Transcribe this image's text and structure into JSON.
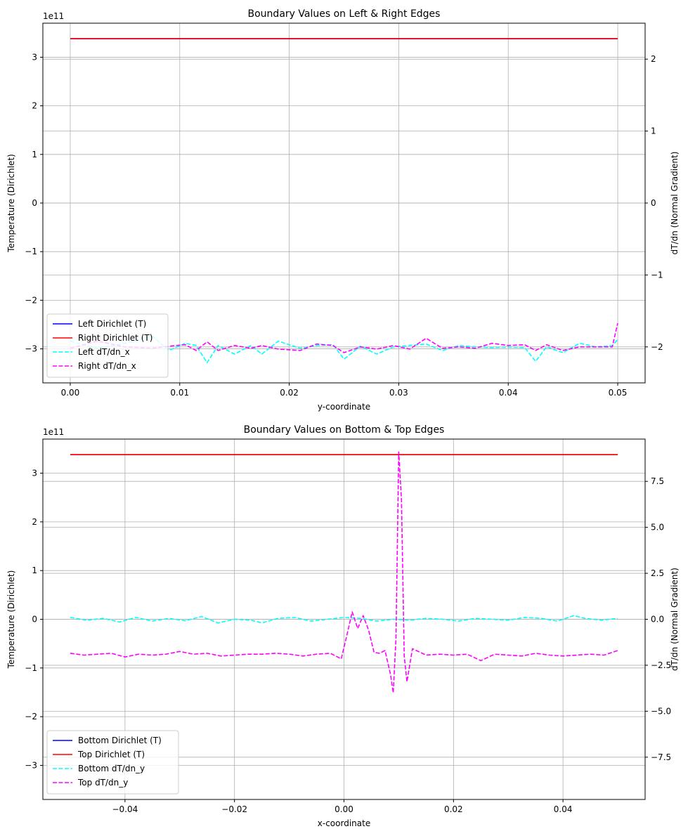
{
  "chart_data": [
    {
      "type": "line",
      "title": "Boundary Values on Left & Right Edges",
      "xlabel": "y-coordinate",
      "ylabel_left": "Temperature (Dirichlet)",
      "ylabel_right": "dT/dn (Normal Gradient)",
      "offset_label": "1e11",
      "xlim": [
        -0.0025,
        0.0525
      ],
      "ylim_left": [
        -3.7,
        3.7
      ],
      "ylim_right": [
        -2.5,
        2.5
      ],
      "xticks": [
        0.0,
        0.01,
        0.02,
        0.03,
        0.04,
        0.05
      ],
      "xtick_labels": [
        "0.00",
        "0.01",
        "0.02",
        "0.03",
        "0.04",
        "0.05"
      ],
      "yticks_left": [
        -3,
        -2,
        -1,
        0,
        1,
        2,
        3
      ],
      "ytick_labels_left": [
        "−3",
        "−2",
        "−1",
        "0",
        "1",
        "2",
        "3"
      ],
      "yticks_right": [
        -2,
        -1,
        0,
        1,
        2
      ],
      "ytick_labels_right": [
        "−2",
        "−1",
        "0",
        "1",
        "2"
      ],
      "grid": true,
      "legend_position": "lower-left",
      "series": [
        {
          "name": "Left Dirichlet (T)",
          "axis": "left",
          "color": "#0000ff",
          "style": "solid",
          "x": [
            0.0,
            0.05
          ],
          "y": [
            3.38,
            3.38
          ]
        },
        {
          "name": "Right Dirichlet (T)",
          "axis": "left",
          "color": "#ff0000",
          "style": "solid",
          "x": [
            0.0,
            0.05
          ],
          "y": [
            3.38,
            3.38
          ]
        },
        {
          "name": "Left dT/dn_x",
          "axis": "right",
          "color": "#00ffff",
          "style": "dashed",
          "x": [
            0.0,
            0.0025,
            0.005,
            0.0075,
            0.009,
            0.0105,
            0.0115,
            0.0125,
            0.0135,
            0.015,
            0.0165,
            0.0175,
            0.019,
            0.021,
            0.0225,
            0.024,
            0.025,
            0.0265,
            0.028,
            0.0295,
            0.031,
            0.0325,
            0.034,
            0.0355,
            0.037,
            0.0385,
            0.04,
            0.0415,
            0.0425,
            0.0435,
            0.045,
            0.0465,
            0.048,
            0.0495,
            0.05
          ],
          "y": [
            -1.92,
            -2.02,
            -1.95,
            -1.85,
            -2.05,
            -1.95,
            -1.98,
            -2.22,
            -1.98,
            -2.1,
            -1.98,
            -2.1,
            -1.92,
            -2.02,
            -1.98,
            -1.97,
            -2.17,
            -1.99,
            -2.1,
            -2.0,
            -1.98,
            -1.96,
            -2.05,
            -1.98,
            -2.0,
            -2.01,
            -2.0,
            -2.01,
            -2.2,
            -2.0,
            -2.08,
            -1.95,
            -2.0,
            -1.98,
            -1.9
          ]
        },
        {
          "name": "Right dT/dn_x",
          "axis": "right",
          "color": "#ff00ff",
          "style": "dashed",
          "x": [
            0.0,
            0.0025,
            0.005,
            0.0075,
            0.009,
            0.0105,
            0.0115,
            0.0125,
            0.0135,
            0.015,
            0.0165,
            0.0175,
            0.019,
            0.021,
            0.0225,
            0.024,
            0.025,
            0.0265,
            0.028,
            0.0295,
            0.031,
            0.0325,
            0.034,
            0.0355,
            0.037,
            0.0385,
            0.04,
            0.0415,
            0.0425,
            0.0435,
            0.045,
            0.0465,
            0.048,
            0.0495,
            0.05
          ],
          "y": [
            -2.02,
            -1.92,
            -2.0,
            -2.02,
            -1.99,
            -1.97,
            -2.05,
            -1.93,
            -2.05,
            -1.98,
            -2.02,
            -1.98,
            -2.03,
            -2.05,
            -1.96,
            -1.98,
            -2.08,
            -2.0,
            -2.03,
            -1.98,
            -2.03,
            -1.88,
            -2.02,
            -2.0,
            -2.02,
            -1.95,
            -1.98,
            -1.97,
            -2.05,
            -1.97,
            -2.05,
            -2.0,
            -2.0,
            -2.0,
            -1.67
          ]
        }
      ]
    },
    {
      "type": "line",
      "title": "Boundary Values on Bottom & Top Edges",
      "xlabel": "x-coordinate",
      "ylabel_left": "Temperature (Dirichlet)",
      "ylabel_right": "dT/dn (Normal Gradient)",
      "offset_label": "1e11",
      "xlim": [
        -0.055,
        0.055
      ],
      "ylim_left": [
        -3.7,
        3.7
      ],
      "ylim_right": [
        -9.8,
        9.8
      ],
      "xticks": [
        -0.04,
        -0.02,
        0.0,
        0.02,
        0.04
      ],
      "xtick_labels": [
        "−0.04",
        "−0.02",
        "0.00",
        "0.02",
        "0.04"
      ],
      "yticks_left": [
        -3,
        -2,
        -1,
        0,
        1,
        2,
        3
      ],
      "ytick_labels_left": [
        "−3",
        "−2",
        "−1",
        "0",
        "1",
        "2",
        "3"
      ],
      "yticks_right": [
        -7.5,
        -5.0,
        -2.5,
        0.0,
        2.5,
        5.0,
        7.5
      ],
      "ytick_labels_right": [
        "−7.5",
        "−5.0",
        "−2.5",
        "0.0",
        "2.5",
        "5.0",
        "7.5"
      ],
      "grid": true,
      "legend_position": "lower-left",
      "series": [
        {
          "name": "Bottom Dirichlet (T)",
          "axis": "left",
          "color": "#0000ff",
          "style": "solid",
          "x": [
            -0.05,
            0.05
          ],
          "y": [
            3.38,
            3.38
          ]
        },
        {
          "name": "Top Dirichlet (T)",
          "axis": "left",
          "color": "#ff0000",
          "style": "solid",
          "x": [
            -0.05,
            0.05
          ],
          "y": [
            3.38,
            3.38
          ]
        },
        {
          "name": "Bottom dT/dn_y",
          "axis": "right",
          "color": "#00ffff",
          "style": "dashed",
          "x": [
            -0.05,
            -0.047,
            -0.044,
            -0.041,
            -0.038,
            -0.035,
            -0.032,
            -0.029,
            -0.026,
            -0.023,
            -0.02,
            -0.017,
            -0.015,
            -0.012,
            -0.009,
            -0.006,
            -0.003,
            0.0,
            0.003,
            0.006,
            0.009,
            0.012,
            0.015,
            0.018,
            0.021,
            0.024,
            0.027,
            0.03,
            0.033,
            0.036,
            0.039,
            0.042,
            0.044,
            0.047,
            0.05
          ],
          "y": [
            0.1,
            -0.05,
            0.05,
            -0.15,
            0.1,
            -0.1,
            0.05,
            -0.08,
            0.15,
            -0.2,
            0.0,
            -0.05,
            -0.2,
            0.05,
            0.1,
            -0.1,
            0.0,
            0.1,
            0.05,
            -0.1,
            0.0,
            -0.05,
            0.05,
            0.0,
            -0.1,
            0.05,
            0.0,
            -0.05,
            0.1,
            0.05,
            -0.1,
            0.2,
            0.05,
            -0.05,
            0.05
          ]
        },
        {
          "name": "Top dT/dn_y",
          "axis": "right",
          "color": "#ff00ff",
          "style": "dashed",
          "x": [
            -0.05,
            -0.0475,
            -0.045,
            -0.0425,
            -0.04,
            -0.0375,
            -0.035,
            -0.0325,
            -0.03,
            -0.0275,
            -0.025,
            -0.0225,
            -0.02,
            -0.0175,
            -0.015,
            -0.0125,
            -0.01,
            -0.0075,
            -0.005,
            -0.0025,
            -0.0005,
            0.0005,
            0.0015,
            0.0025,
            0.0035,
            0.0045,
            0.0055,
            0.0065,
            0.0075,
            0.0085,
            0.009,
            0.0095,
            0.01,
            0.0105,
            0.011,
            0.0115,
            0.0125,
            0.015,
            0.0175,
            0.02,
            0.0225,
            0.025,
            0.0275,
            0.03,
            0.0325,
            0.035,
            0.0375,
            0.04,
            0.0425,
            0.045,
            0.0475,
            0.05
          ],
          "y": [
            -1.85,
            -1.95,
            -1.9,
            -1.85,
            -2.05,
            -1.9,
            -1.95,
            -1.9,
            -1.75,
            -1.9,
            -1.85,
            -2.0,
            -1.95,
            -1.9,
            -1.9,
            -1.85,
            -1.9,
            -2.0,
            -1.9,
            -1.85,
            -2.15,
            -0.9,
            0.4,
            -0.5,
            0.2,
            -0.6,
            -1.8,
            -1.85,
            -1.7,
            -3.0,
            -4.0,
            -1.0,
            9.1,
            6.5,
            -2.0,
            -3.4,
            -1.6,
            -1.95,
            -1.9,
            -1.95,
            -1.9,
            -2.25,
            -1.9,
            -1.95,
            -2.0,
            -1.85,
            -1.95,
            -2.0,
            -1.95,
            -1.9,
            -1.95,
            -1.7
          ]
        }
      ]
    }
  ]
}
